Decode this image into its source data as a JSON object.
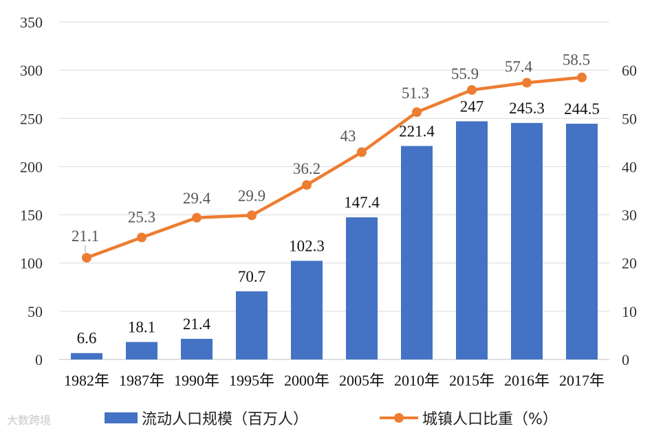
{
  "chart_data": {
    "type": "bar+line",
    "title": "",
    "categories": [
      "1982年",
      "1987年",
      "1990年",
      "1995年",
      "2000年",
      "2005年",
      "2010年",
      "2015年",
      "2016年",
      "2017年"
    ],
    "series": [
      {
        "name": "流动人口规模（百万人）",
        "type": "bar",
        "axis": "left",
        "color": "#4472C4",
        "values": [
          6.6,
          18.1,
          21.4,
          70.7,
          102.3,
          147.4,
          221.4,
          247,
          245.3,
          244.5
        ],
        "labels": [
          "6.6",
          "18.1",
          "21.4",
          "70.7",
          "102.3",
          "147.4",
          "221.4",
          "247",
          "245.3",
          "244.5"
        ]
      },
      {
        "name": "城镇人口比重（%）",
        "type": "line",
        "axis": "right",
        "color": "#ED7D31",
        "values": [
          21.1,
          25.3,
          29.4,
          29.9,
          36.2,
          43,
          51.3,
          55.9,
          57.4,
          58.5
        ],
        "labels": [
          "21.1",
          "25.3",
          "29.4",
          "29.9",
          "36.2",
          "43",
          "51.3",
          "55.9",
          "57.4",
          "58.5"
        ]
      }
    ],
    "y_left": {
      "lim": [
        0,
        350
      ],
      "ticks": [
        0,
        50,
        100,
        150,
        200,
        250,
        300,
        350
      ]
    },
    "y_right": {
      "lim": [
        0,
        70
      ],
      "ticks": [
        0,
        10,
        20,
        30,
        40,
        50,
        60
      ]
    },
    "grid": true,
    "legend_position": "bottom"
  },
  "legend": {
    "bar_label": "流动人口规模（百万人）",
    "line_label": "城镇人口比重（%）"
  },
  "watermark": "大数跨境"
}
